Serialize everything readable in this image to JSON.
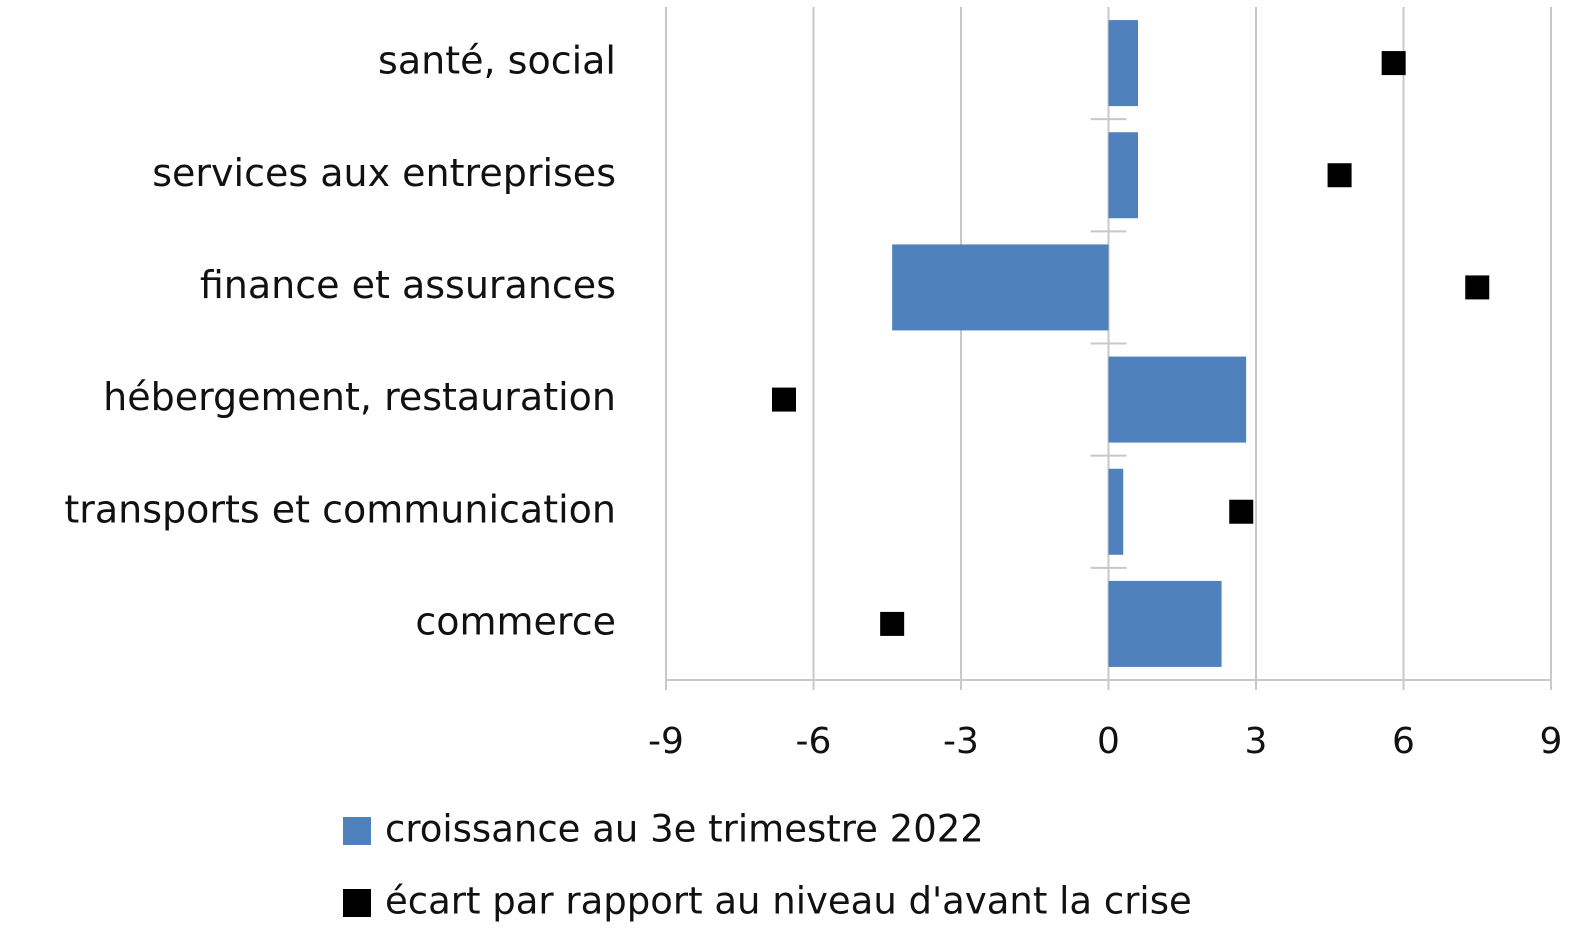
{
  "chart_data": {
    "type": "bar",
    "orientation": "horizontal",
    "categories": [
      "santé, social",
      "services aux entreprises",
      "finance et assurances",
      "hébergement, restauration",
      "transports et communication",
      "commerce"
    ],
    "series": [
      {
        "name": "croissance au 3e trimestre 2022",
        "type": "bar",
        "color": "#4f81bd",
        "values": [
          0.6,
          0.6,
          -4.4,
          2.8,
          0.3,
          2.3
        ]
      },
      {
        "name": "écart par rapport au niveau d'avant la crise",
        "type": "scatter",
        "marker": "square",
        "color": "#000000",
        "values": [
          5.8,
          4.7,
          7.5,
          -6.6,
          2.7,
          -4.4
        ]
      }
    ],
    "xlim": [
      -9,
      9
    ],
    "xticks": [
      -9,
      -6,
      -3,
      0,
      3,
      6,
      9
    ],
    "grid": true,
    "legend": "bottom"
  }
}
